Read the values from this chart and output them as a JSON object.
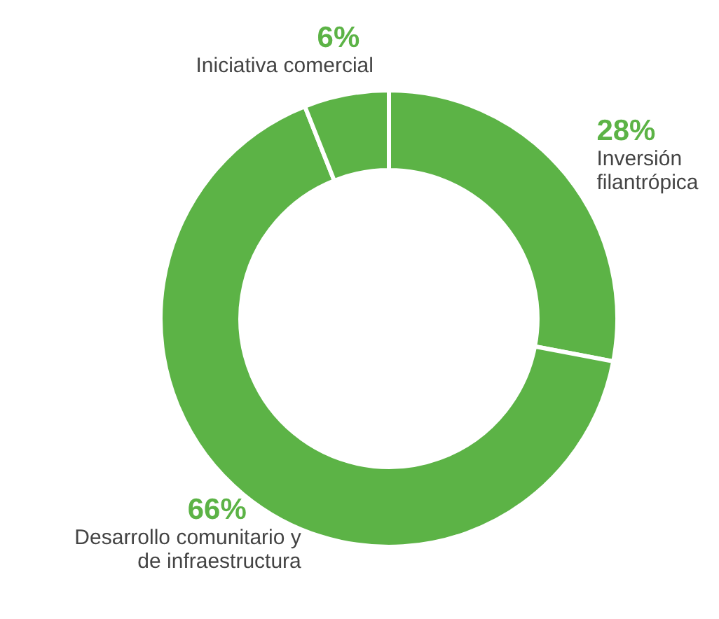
{
  "chart_data": {
    "type": "donut",
    "categories": [
      "Inversión\nfilantrópica",
      "Desarrollo comunitario y\nde infraestructura",
      "Iniciativa comercial"
    ],
    "values": [
      28,
      66,
      6
    ],
    "colors": [
      "#5cb346",
      "#5cb346",
      "#5cb346"
    ],
    "value_labels": [
      "28%",
      "66%",
      "6%"
    ]
  }
}
